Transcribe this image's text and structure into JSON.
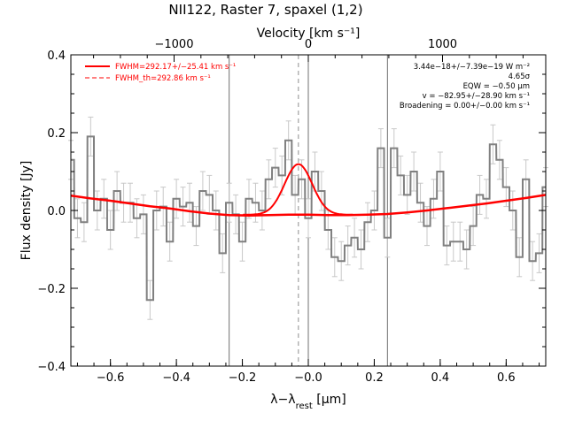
{
  "chart_data": {
    "type": "line",
    "title": "NII122, Raster 7, spaxel (1,2)",
    "xlabel": "λ−λrest [μm]",
    "xlabel_main": "λ−λ",
    "xlabel_sub": "rest",
    "xlabel_unit": " [μm]",
    "ylabel": "Flux density [Jy]",
    "top_axis_label": "Velocity [km s⁻¹]",
    "xlim": [
      -0.72,
      0.72
    ],
    "ylim": [
      -0.4,
      0.4
    ],
    "x_ticks": [
      {
        "value": -0.6,
        "label": "−0.6"
      },
      {
        "value": -0.4,
        "label": "−0.4"
      },
      {
        "value": -0.2,
        "label": "−0.2"
      },
      {
        "value": 0.0,
        "label": "−0.0"
      },
      {
        "value": 0.2,
        "label": "0.2"
      },
      {
        "value": 0.4,
        "label": "0.4"
      },
      {
        "value": 0.6,
        "label": "0.6"
      }
    ],
    "y_ticks": [
      {
        "value": -0.4,
        "label": "−0.4"
      },
      {
        "value": -0.2,
        "label": "−0.2"
      },
      {
        "value": 0.0,
        "label": "0.0"
      },
      {
        "value": 0.2,
        "label": "0.2"
      },
      {
        "value": 0.4,
        "label": "0.4"
      }
    ],
    "top_ticks": [
      {
        "value": -1000,
        "label": "−1000"
      },
      {
        "value": 0,
        "label": "0"
      },
      {
        "value": 1000,
        "label": "1000"
      }
    ],
    "velocity_per_um": 2457,
    "vertical_lines": [
      -0.24,
      0.0,
      0.24
    ],
    "fwhm_dashed_x": -0.03,
    "legend": [
      {
        "label": "FWHM=292.17+/−25.41 km s⁻¹",
        "style": "solid",
        "color": "#ff0000"
      },
      {
        "label": "FWHM_th=292.86 km s⁻¹",
        "style": "dashed",
        "color": "#ff0000"
      }
    ],
    "info_lines": [
      "3.44e−18+/−7.39e−19 W m⁻²",
      "4.65σ",
      "EQW = −0.50 μm",
      "v = −82.95+/−28.90 km s⁻¹",
      "Broadening = 0.00+/−0.00 km s⁻¹"
    ],
    "spectrum": {
      "name": "data",
      "color": "#808080",
      "step": 0.0195,
      "x": [
        -0.72,
        -0.7,
        -0.68,
        -0.66,
        -0.64,
        -0.62,
        -0.6,
        -0.58,
        -0.56,
        -0.54,
        -0.52,
        -0.5,
        -0.48,
        -0.46,
        -0.44,
        -0.42,
        -0.4,
        -0.38,
        -0.36,
        -0.34,
        -0.32,
        -0.3,
        -0.28,
        -0.26,
        -0.24,
        -0.22,
        -0.2,
        -0.18,
        -0.16,
        -0.14,
        -0.12,
        -0.1,
        -0.08,
        -0.06,
        -0.04,
        -0.02,
        0.0,
        0.02,
        0.04,
        0.06,
        0.08,
        0.1,
        0.12,
        0.14,
        0.16,
        0.18,
        0.2,
        0.22,
        0.24,
        0.26,
        0.28,
        0.3,
        0.32,
        0.34,
        0.36,
        0.38,
        0.4,
        0.42,
        0.44,
        0.46,
        0.48,
        0.5,
        0.52,
        0.54,
        0.56,
        0.58,
        0.6,
        0.62,
        0.64,
        0.66,
        0.68,
        0.7,
        0.72
      ],
      "y": [
        0.13,
        -0.02,
        -0.03,
        0.19,
        0.0,
        0.03,
        -0.05,
        0.05,
        0.02,
        0.02,
        -0.02,
        -0.01,
        -0.23,
        0.0,
        0.01,
        -0.08,
        0.03,
        0.01,
        0.02,
        -0.04,
        0.05,
        0.04,
        0.0,
        -0.11,
        0.02,
        -0.01,
        -0.08,
        0.03,
        0.02,
        0.0,
        0.08,
        0.11,
        0.09,
        0.18,
        0.04,
        0.08,
        -0.02,
        0.1,
        0.05,
        -0.05,
        -0.12,
        -0.13,
        -0.09,
        -0.07,
        -0.1,
        -0.03,
        0.0,
        0.16,
        -0.07,
        0.16,
        0.09,
        0.04,
        0.1,
        0.02,
        -0.04,
        0.03,
        0.1,
        -0.09,
        -0.08,
        -0.08,
        -0.1,
        -0.04,
        0.04,
        0.03,
        0.17,
        0.13,
        0.06,
        0.0,
        -0.12,
        0.08,
        -0.13,
        -0.11,
        0.06
      ],
      "err": [
        0.05,
        0.05,
        0.05,
        0.05,
        0.05,
        0.05,
        0.05,
        0.05,
        0.05,
        0.05,
        0.05,
        0.05,
        0.05,
        0.05,
        0.05,
        0.05,
        0.05,
        0.05,
        0.05,
        0.05,
        0.05,
        0.05,
        0.05,
        0.05,
        0.05,
        0.05,
        0.05,
        0.05,
        0.05,
        0.05,
        0.05,
        0.05,
        0.05,
        0.05,
        0.05,
        0.05,
        0.05,
        0.05,
        0.05,
        0.05,
        0.05,
        0.05,
        0.05,
        0.05,
        0.05,
        0.05,
        0.05,
        0.05,
        0.05,
        0.05,
        0.05,
        0.05,
        0.05,
        0.05,
        0.05,
        0.05,
        0.05,
        0.05,
        0.05,
        0.05,
        0.05,
        0.05,
        0.05,
        0.05,
        0.05,
        0.05,
        0.05,
        0.05,
        0.05,
        0.05,
        0.05,
        0.05,
        0.05
      ]
    },
    "baseline_fit": {
      "name": "baseline",
      "color": "#ff0000",
      "x": [
        -0.72,
        -0.66,
        -0.6,
        -0.54,
        -0.48,
        -0.42,
        -0.36,
        -0.3,
        -0.24,
        -0.18,
        -0.12,
        -0.06,
        0.0,
        0.06,
        0.12,
        0.18,
        0.24,
        0.3,
        0.36,
        0.42,
        0.48,
        0.54,
        0.6,
        0.66,
        0.72
      ],
      "y": [
        0.038,
        0.031,
        0.025,
        0.018,
        0.011,
        0.005,
        -0.002,
        -0.008,
        -0.012,
        -0.013,
        -0.012,
        -0.011,
        -0.011,
        -0.012,
        -0.012,
        -0.011,
        -0.009,
        -0.005,
        0.0,
        0.006,
        0.012,
        0.018,
        0.025,
        0.032,
        0.04
      ]
    },
    "line_fit": {
      "name": "gaussian",
      "color": "#ff0000",
      "center": -0.03,
      "sigma": 0.042,
      "peak": 0.13,
      "baseline_offset": -0.011
    }
  }
}
